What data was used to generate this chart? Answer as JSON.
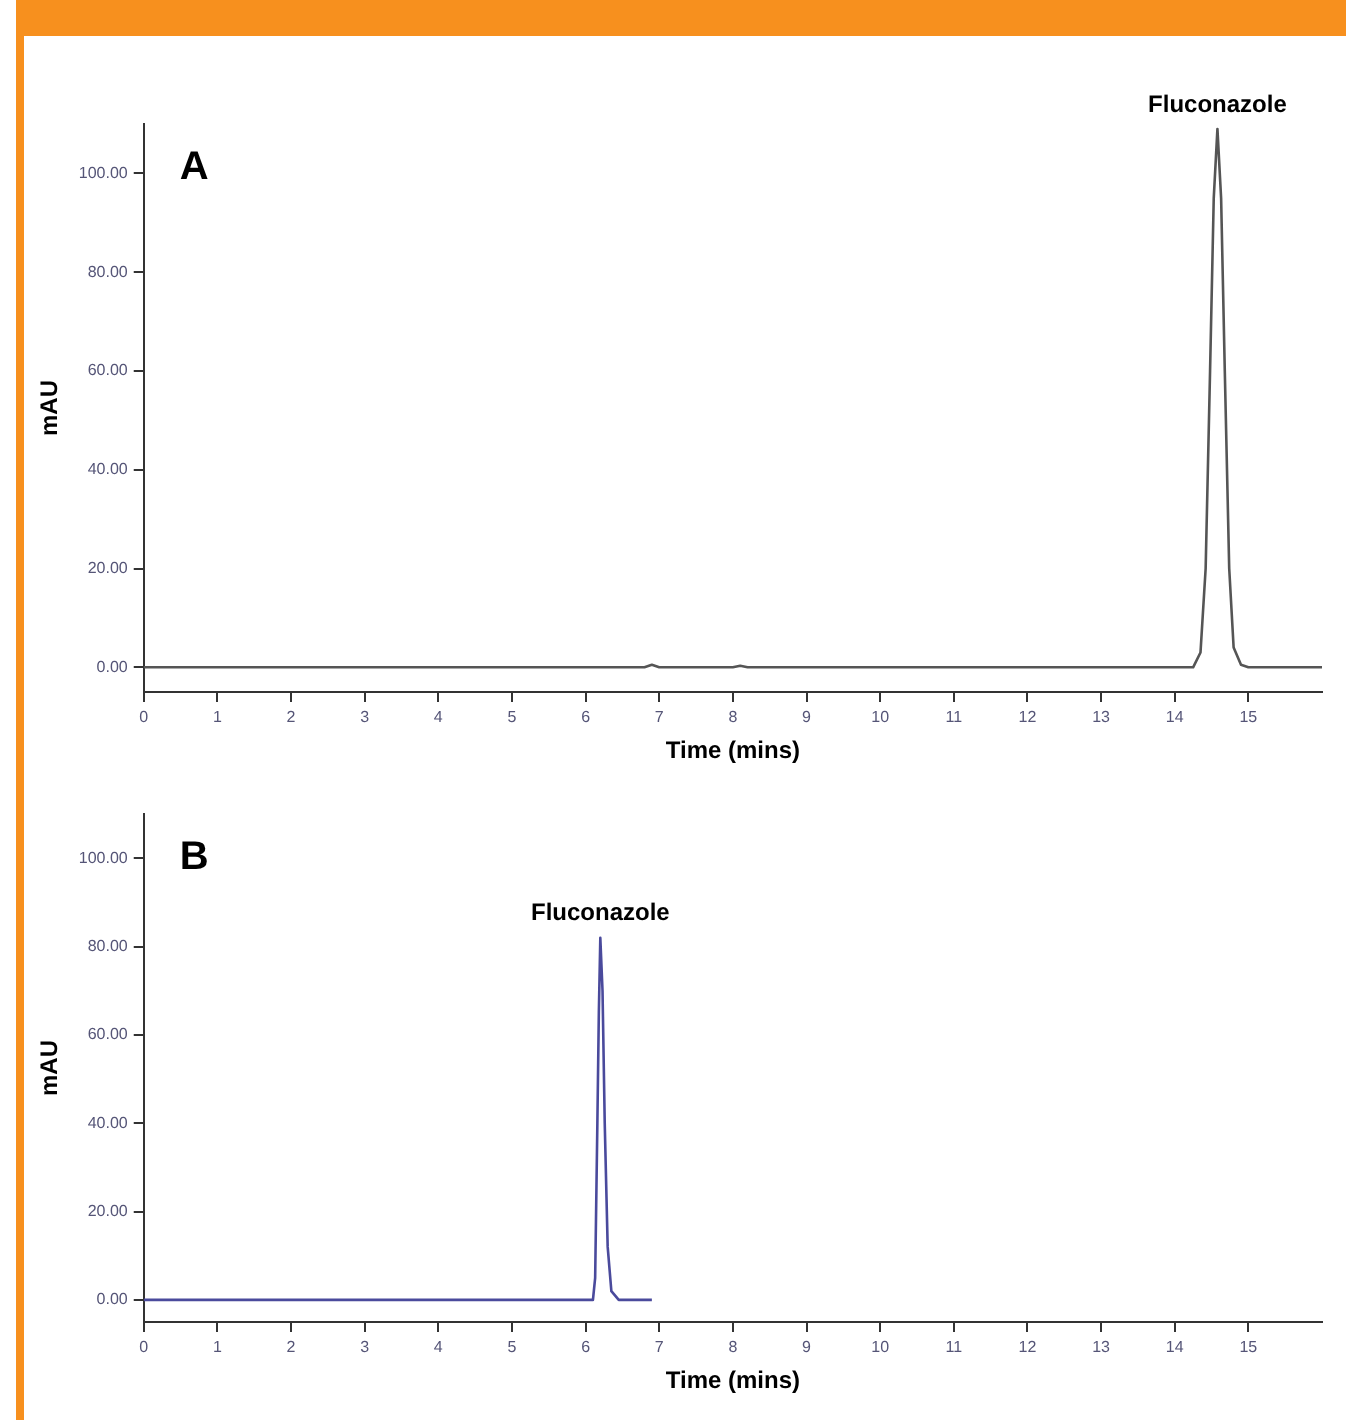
{
  "chart_data": [
    {
      "type": "line",
      "xlabel": "Time (mins)",
      "ylabel": "mAU",
      "annotations": [
        "A",
        {
          "text": "Fluconazole",
          "x": 14.58,
          "y": 109
        }
      ],
      "series": [
        {
          "color": "#555555",
          "x": [
            0,
            6.8,
            6.9,
            7.0,
            8.0,
            8.1,
            8.2,
            14.25,
            14.35,
            14.42,
            14.48,
            14.53,
            14.58,
            14.63,
            14.68,
            14.74,
            14.8,
            14.9,
            15.0,
            15.5,
            16
          ],
          "values": [
            0,
            0,
            0.5,
            0,
            0,
            0.3,
            0,
            0,
            3,
            20,
            60,
            95,
            109,
            95,
            60,
            20,
            4,
            0.5,
            0,
            0,
            0
          ]
        }
      ],
      "xlim": [
        0,
        16
      ],
      "xticks": [
        0,
        1,
        2,
        3,
        4,
        5,
        6,
        7,
        8,
        9,
        10,
        11,
        12,
        13,
        14,
        15
      ],
      "ylim": [
        -5,
        110
      ],
      "yticks": [
        {
          "value": 0,
          "label": "0.00"
        },
        {
          "value": 20,
          "label": "20.00"
        },
        {
          "value": 40,
          "label": "40.00"
        },
        {
          "value": 60,
          "label": "60.00"
        },
        {
          "value": 80,
          "label": "80.00"
        },
        {
          "value": 100,
          "label": "100.00"
        }
      ],
      "grid": false,
      "legend": false,
      "marker": "none",
      "line_style": "solid"
    },
    {
      "type": "line",
      "xlabel": "Time (mins)",
      "ylabel": "mAU",
      "annotations": [
        "B",
        {
          "text": "Fluconazole",
          "x": 6.2,
          "y": 82
        }
      ],
      "series": [
        {
          "color": "#4a4a9c",
          "x": [
            0,
            2.0,
            2.6,
            4.0,
            6.1,
            6.13,
            6.16,
            6.18,
            6.2,
            6.23,
            6.26,
            6.3,
            6.35,
            6.45,
            6.9
          ],
          "values": [
            0,
            0,
            0,
            0,
            0,
            5,
            40,
            65,
            82,
            70,
            40,
            12,
            2,
            0,
            0
          ]
        }
      ],
      "xlim": [
        0,
        16
      ],
      "xticks": [
        0,
        1,
        2,
        3,
        4,
        5,
        6,
        7,
        8,
        9,
        10,
        11,
        12,
        13,
        14,
        15
      ],
      "ylim": [
        -5,
        110
      ],
      "yticks": [
        {
          "value": 0,
          "label": "0.00"
        },
        {
          "value": 20,
          "label": "20.00"
        },
        {
          "value": 40,
          "label": "40.00"
        },
        {
          "value": 60,
          "label": "60.00"
        },
        {
          "value": 80,
          "label": "80.00"
        },
        {
          "value": 100,
          "label": "100.00"
        }
      ],
      "grid": false,
      "legend": false,
      "marker": "none",
      "line_style": "solid"
    }
  ]
}
